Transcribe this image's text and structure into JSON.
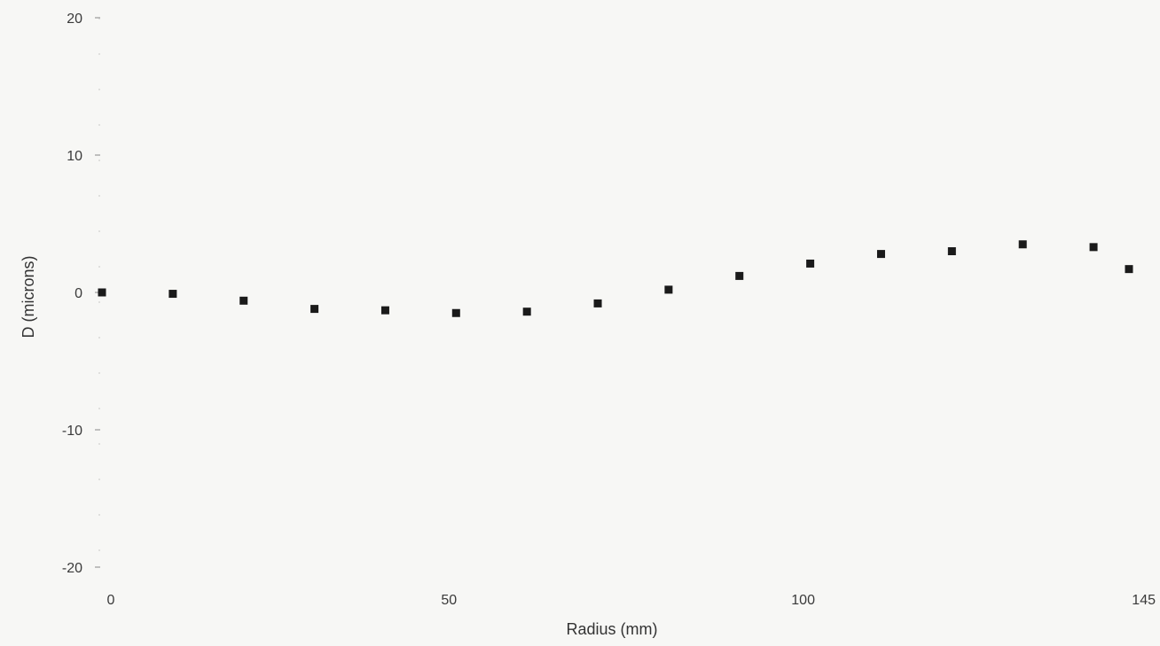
{
  "chart_data": {
    "type": "scatter",
    "xlabel": "Radius (mm)",
    "ylabel": "D (microns)",
    "xlim": [
      0,
      145
    ],
    "ylim": [
      -20,
      20
    ],
    "x_ticks": [
      {
        "value": 0,
        "label": "0"
      },
      {
        "value": 50,
        "label": "50"
      },
      {
        "value": 100,
        "label": "100"
      },
      {
        "value": 145,
        "label": "145"
      }
    ],
    "y_ticks": [
      {
        "value": 20,
        "label": "20"
      },
      {
        "value": 10,
        "label": "10"
      },
      {
        "value": 0,
        "label": "0"
      },
      {
        "value": -10,
        "label": "-10"
      },
      {
        "value": -20,
        "label": "-20"
      }
    ],
    "grid": false,
    "marker_color": "#1a1a1a",
    "series": [
      {
        "marker": "square",
        "points": [
          {
            "x": 0,
            "y": 0
          },
          {
            "x": 10,
            "y": -0.1
          },
          {
            "x": 20,
            "y": -0.6
          },
          {
            "x": 30,
            "y": -1.2
          },
          {
            "x": 40,
            "y": -1.3
          },
          {
            "x": 50,
            "y": -1.5
          },
          {
            "x": 60,
            "y": -1.4
          },
          {
            "x": 70,
            "y": -0.8
          },
          {
            "x": 80,
            "y": 0.2
          },
          {
            "x": 90,
            "y": 1.2
          },
          {
            "x": 100,
            "y": 2.1
          },
          {
            "x": 110,
            "y": 2.8
          },
          {
            "x": 120,
            "y": 3.0
          },
          {
            "x": 130,
            "y": 3.5
          },
          {
            "x": 140,
            "y": 3.3
          },
          {
            "x": 145,
            "y": 1.7
          }
        ]
      }
    ]
  }
}
